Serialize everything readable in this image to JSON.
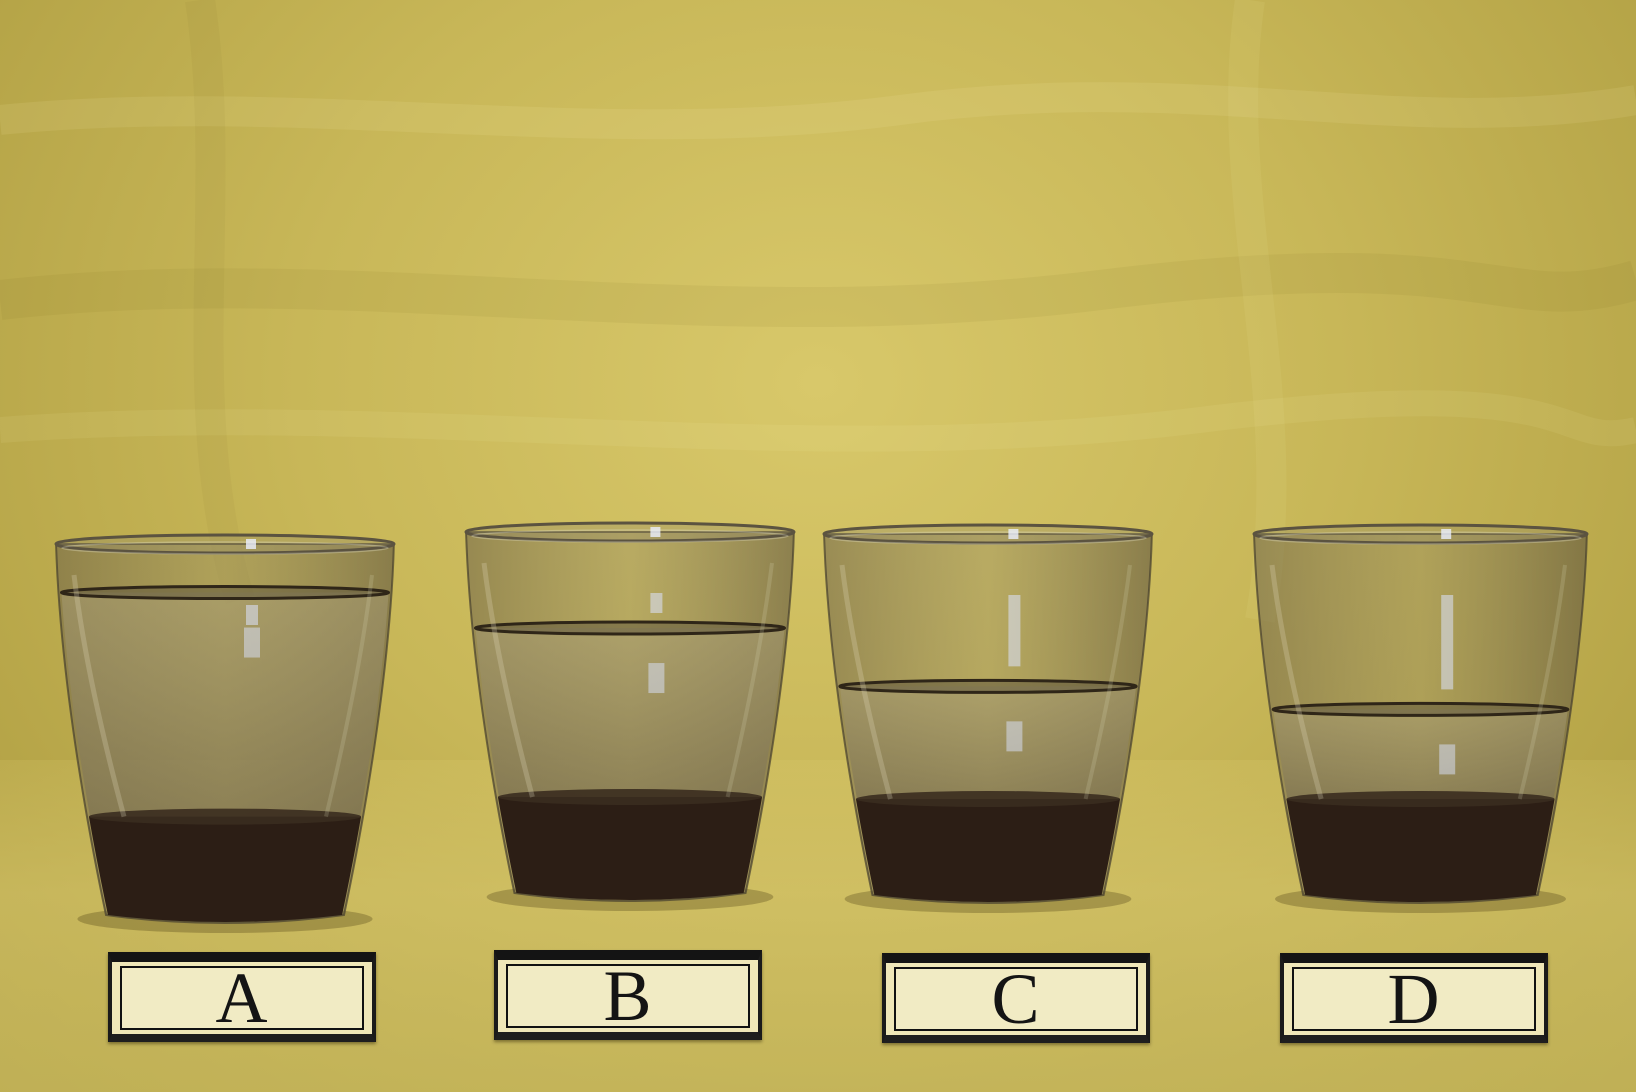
{
  "glasses": [
    {
      "label": "A",
      "liquid_level": 0.85
    },
    {
      "label": "B",
      "liquid_level": 0.66
    },
    {
      "label": "C",
      "liquid_level": 0.44
    },
    {
      "label": "D",
      "liquid_level": 0.35
    }
  ],
  "colors": {
    "backdrop": "#cdbc5c",
    "glass_tint": "#5a5040",
    "glass_base": "#2a1d14",
    "label_card": "#f1ebc4",
    "label_frame": "#141414"
  }
}
